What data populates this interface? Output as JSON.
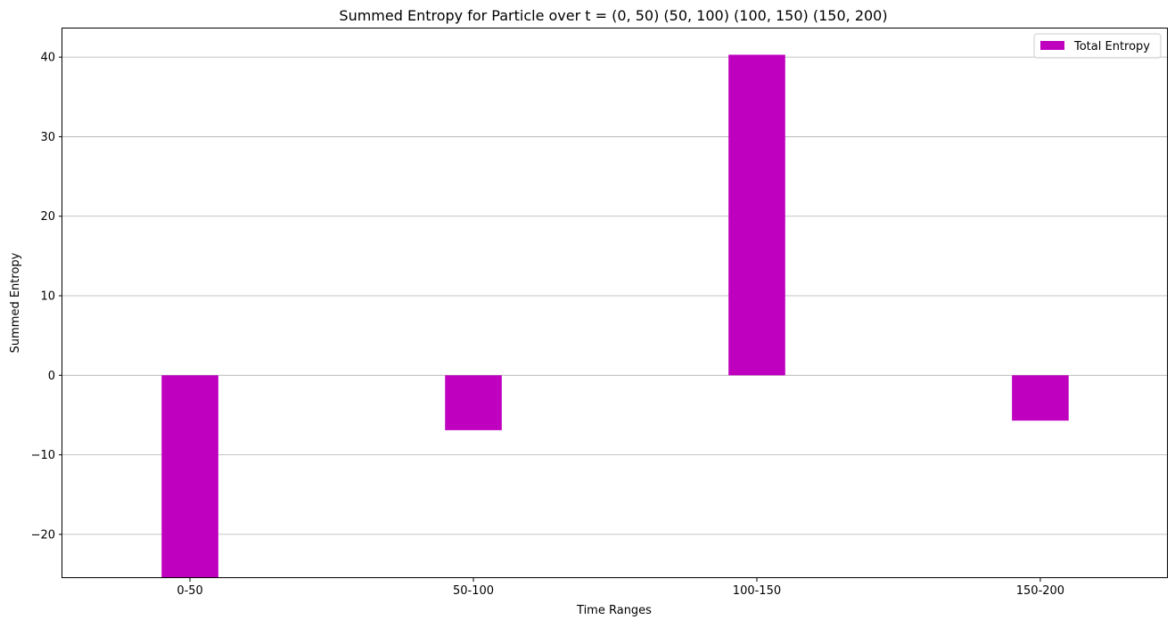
{
  "chart_data": {
    "type": "bar",
    "title": "Summed Entropy for Particle over t = (0, 50) (50, 100) (100, 150) (150, 200)",
    "xlabel": "Time Ranges",
    "ylabel": "Summed Entropy",
    "categories": [
      "0-50",
      "50-100",
      "100-150",
      "150-200"
    ],
    "series": [
      {
        "name": "Total Entropy",
        "color": "#bf00bf",
        "values": [
          -25.5,
          -6.9,
          40.3,
          -5.7
        ]
      }
    ],
    "ylim": [
      -25.5,
      43.6
    ],
    "yticks": [
      -20,
      -10,
      0,
      10,
      20,
      30,
      40
    ],
    "ytick_labels": [
      "−20",
      "−10",
      "0",
      "10",
      "20",
      "30",
      "40"
    ],
    "grid": "y",
    "legend_position": "upper right"
  }
}
